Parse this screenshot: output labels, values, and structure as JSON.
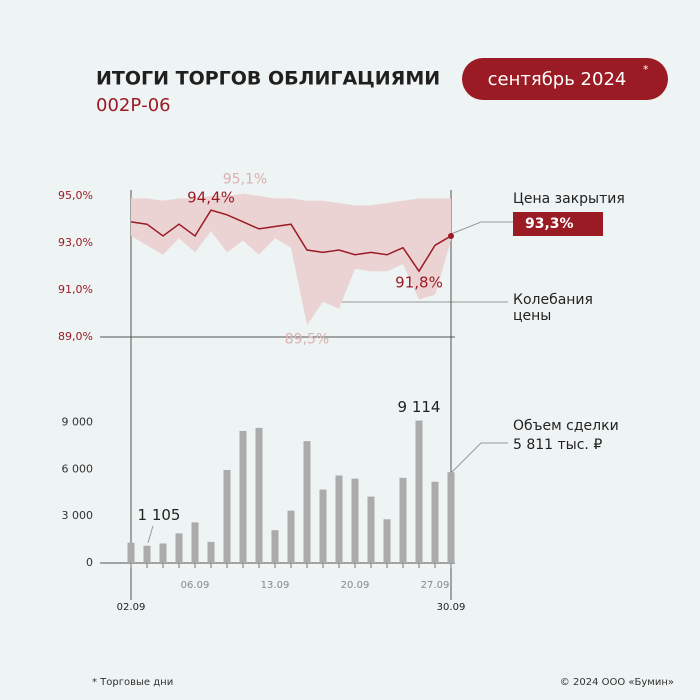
{
  "header": {
    "title": "ИТОГИ ТОРГОВ ОБЛИГАЦИЯМИ",
    "subtitle": "002Р-06",
    "period": "сентябрь 2024",
    "period_mark": "*"
  },
  "footer": {
    "note": "* Торговые дни",
    "copyright": "© 2024 ООО «Бумин»"
  },
  "chart_data": [
    {
      "type": "line",
      "categories": [
        "02.09",
        null,
        null,
        null,
        "06.09",
        null,
        null,
        null,
        null,
        "13.09",
        null,
        null,
        null,
        null,
        "20.09",
        null,
        null,
        null,
        null,
        "27.09",
        "30.09"
      ],
      "ylim": [
        89,
        95.2
      ],
      "yticks": [
        {
          "value": 89,
          "label": "89,0%"
        },
        {
          "value": 91,
          "label": "91,0%"
        },
        {
          "value": 93,
          "label": "93,0%"
        },
        {
          "value": 95,
          "label": "95,0%"
        }
      ],
      "series": [
        {
          "name": "Цена закрытия",
          "color": "#9b1b24",
          "values": [
            93.9,
            93.8,
            93.3,
            93.8,
            93.3,
            94.4,
            94.2,
            93.9,
            93.6,
            93.7,
            93.8,
            92.7,
            92.6,
            92.7,
            92.5,
            92.6,
            92.5,
            92.8,
            91.8,
            92.9,
            93.3
          ],
          "value_labels": [
            null,
            null,
            null,
            null,
            null,
            "94,4%",
            null,
            null,
            null,
            null,
            null,
            null,
            null,
            null,
            null,
            null,
            null,
            null,
            "91,8%",
            null,
            "93,3%"
          ]
        },
        {
          "name": "Колебания цены",
          "color": "#ecd3d3",
          "label_color": "#dcb0b0",
          "high": [
            94.9,
            94.9,
            94.8,
            94.9,
            94.9,
            95.0,
            95.0,
            95.1,
            95.0,
            94.9,
            94.9,
            94.8,
            94.8,
            94.7,
            94.6,
            94.6,
            94.7,
            94.8,
            94.9,
            94.9,
            94.9
          ],
          "low": [
            93.3,
            92.9,
            92.5,
            93.2,
            92.6,
            93.5,
            92.6,
            93.1,
            92.5,
            93.2,
            92.8,
            89.5,
            90.5,
            90.2,
            91.9,
            91.8,
            91.8,
            92.1,
            90.6,
            90.8,
            93.1
          ],
          "high_labels": [
            null,
            null,
            null,
            null,
            null,
            null,
            null,
            "95,1%",
            null,
            null,
            null,
            null,
            null,
            null,
            null,
            null,
            null,
            null,
            null,
            null,
            null
          ],
          "low_labels": [
            null,
            null,
            null,
            null,
            null,
            null,
            null,
            null,
            null,
            null,
            null,
            "89,5%",
            null,
            null,
            null,
            null,
            null,
            null,
            null,
            null,
            null
          ]
        }
      ]
    },
    {
      "type": "bar",
      "categories": [
        "02.09",
        null,
        null,
        null,
        "06.09",
        null,
        null,
        null,
        null,
        "13.09",
        null,
        null,
        null,
        null,
        "20.09",
        null,
        null,
        null,
        null,
        "27.09",
        "30.09"
      ],
      "ylim": [
        0,
        9600
      ],
      "yticks": [
        0,
        {
          "value": 3000,
          "label": "3 000"
        },
        {
          "value": 6000,
          "label": "6 000"
        },
        {
          "value": 9000,
          "label": "9 000"
        }
      ],
      "series": [
        {
          "name": "Объем сделки",
          "color": "#ababab",
          "values": [
            1300,
            1105,
            1250,
            1900,
            2600,
            1350,
            5950,
            8450,
            8650,
            2100,
            3350,
            7800,
            4700,
            5600,
            5400,
            4250,
            2800,
            5450,
            9114,
            5200,
            5811
          ],
          "value_labels": [
            null,
            "1 105",
            null,
            null,
            null,
            null,
            null,
            null,
            null,
            null,
            null,
            null,
            null,
            null,
            null,
            null,
            null,
            null,
            "9 114",
            null,
            "5 811 тыс. ₽"
          ]
        }
      ]
    }
  ]
}
